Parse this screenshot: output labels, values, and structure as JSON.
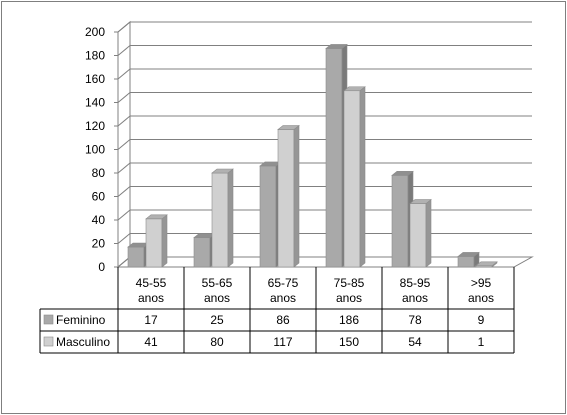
{
  "chart_data": {
    "type": "bar",
    "title": "",
    "xlabel": "",
    "ylabel": "",
    "ylim": [
      0,
      200
    ],
    "yticks": [
      0,
      20,
      40,
      60,
      80,
      100,
      120,
      140,
      160,
      180,
      200
    ],
    "grid": true,
    "legend": "data-table",
    "categories": [
      [
        "45-55",
        "anos"
      ],
      [
        "55-65",
        "anos"
      ],
      [
        "65-75",
        "anos"
      ],
      [
        "75-85",
        "anos"
      ],
      [
        "85-95",
        "anos"
      ],
      [
        ">95",
        "anos"
      ]
    ],
    "series": [
      {
        "name": "Feminino",
        "values": [
          17,
          25,
          86,
          186,
          78,
          9
        ],
        "color": "#a9a9a9"
      },
      {
        "name": "Masculino",
        "values": [
          41,
          80,
          117,
          150,
          54,
          1
        ],
        "color": "#d0d0d0"
      }
    ]
  }
}
